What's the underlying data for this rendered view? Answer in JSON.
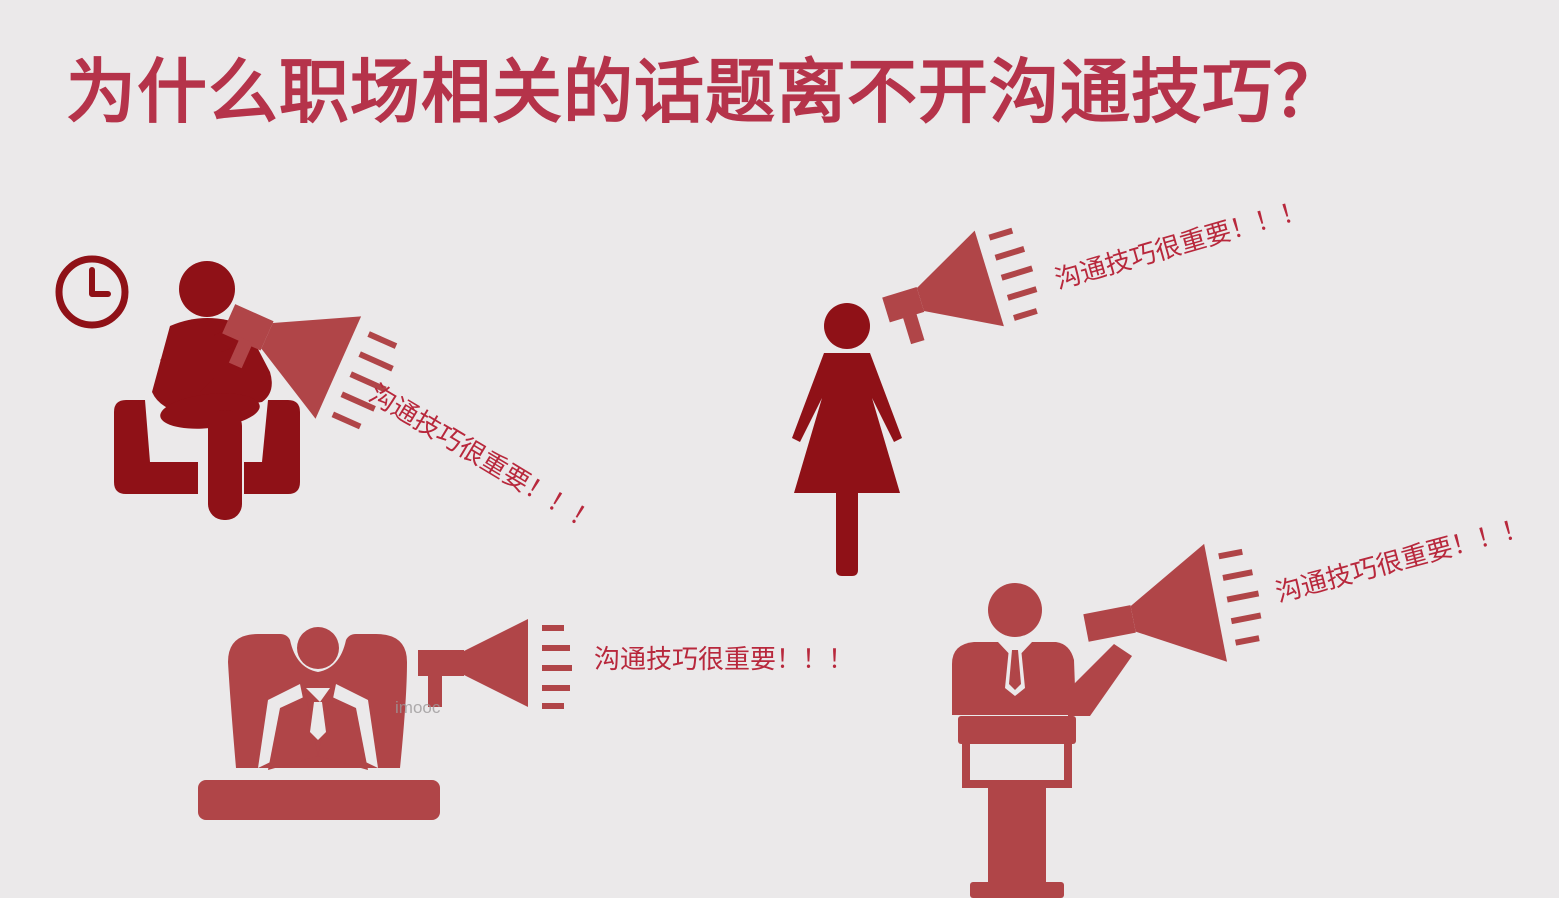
{
  "title": "为什么职场相关的话题离不开沟通技巧？",
  "shouts": [
    "沟通技巧很重要！！！",
    "沟通技巧很重要！！！",
    "沟通技巧很重要！！！",
    "沟通技巧很重要！！！"
  ],
  "watermark": "imooc",
  "colors": {
    "background": "#ebe9ea",
    "dark_red": "#8f1117",
    "red": "#b04548",
    "title_red": "#b5334a",
    "text_red": "#b8283c"
  },
  "icons": [
    "clock-icon",
    "seated-person-icon",
    "woman-icon",
    "news-anchor-icon",
    "speaker-at-podium-icon",
    "megaphone-icon"
  ]
}
